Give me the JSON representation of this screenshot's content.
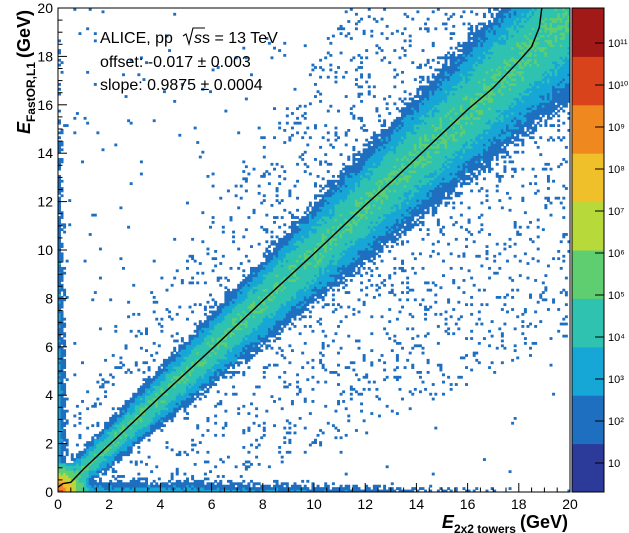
{
  "chart_data": {
    "type": "heatmap",
    "title": "",
    "xlabel": {
      "main": "E",
      "sub": "2x2 towers",
      "unit": "(GeV)"
    },
    "ylabel": {
      "main": "E",
      "sub": "FastOR,L1",
      "unit": "(GeV)"
    },
    "xlim": [
      0,
      20
    ],
    "ylim": [
      0,
      20
    ],
    "x_ticks": [
      "0",
      "2",
      "4",
      "6",
      "8",
      "10",
      "12",
      "14",
      "16",
      "18",
      "20"
    ],
    "y_ticks": [
      "0",
      "2",
      "4",
      "6",
      "8",
      "10",
      "12",
      "14",
      "16",
      "18",
      "20"
    ],
    "annotations": {
      "experiment": "ALICE, pp",
      "energy": "s = 13 TeV",
      "offset": "offset: -0.017 ± 0.003",
      "slope": "slope: 0.9875 ± 0.0004"
    },
    "colorbar": {
      "scale": "log",
      "ticks": [
        "10",
        "10²",
        "10³",
        "10⁴",
        "10⁵",
        "10⁶",
        "10⁷",
        "10⁸",
        "10⁹",
        "10¹⁰",
        "10¹¹"
      ],
      "colors": [
        "#2c3a9a",
        "#1f6fc0",
        "#17a7d6",
        "#2fc2b0",
        "#5fce70",
        "#b8d93a",
        "#f0c02a",
        "#f08820",
        "#d8431c",
        "#a11a18"
      ]
    },
    "profile_line": {
      "series_points": [
        [
          0.0,
          0.2
        ],
        [
          0.2,
          0.35
        ],
        [
          0.5,
          0.4
        ],
        [
          1,
          0.95
        ],
        [
          2,
          1.95
        ],
        [
          4,
          3.95
        ],
        [
          6,
          5.9
        ],
        [
          8,
          7.9
        ],
        [
          10,
          9.85
        ],
        [
          12,
          11.85
        ],
        [
          13,
          12.8
        ],
        [
          14,
          13.8
        ],
        [
          15,
          14.8
        ],
        [
          16,
          15.8
        ],
        [
          17,
          16.7
        ],
        [
          18,
          17.8
        ],
        [
          18.5,
          18.4
        ],
        [
          18.8,
          19.2
        ],
        [
          18.9,
          20.0
        ]
      ]
    },
    "main_band": {
      "center_offset": -0.017,
      "center_slope": 0.9875,
      "max_count_exponent": 11
    }
  }
}
